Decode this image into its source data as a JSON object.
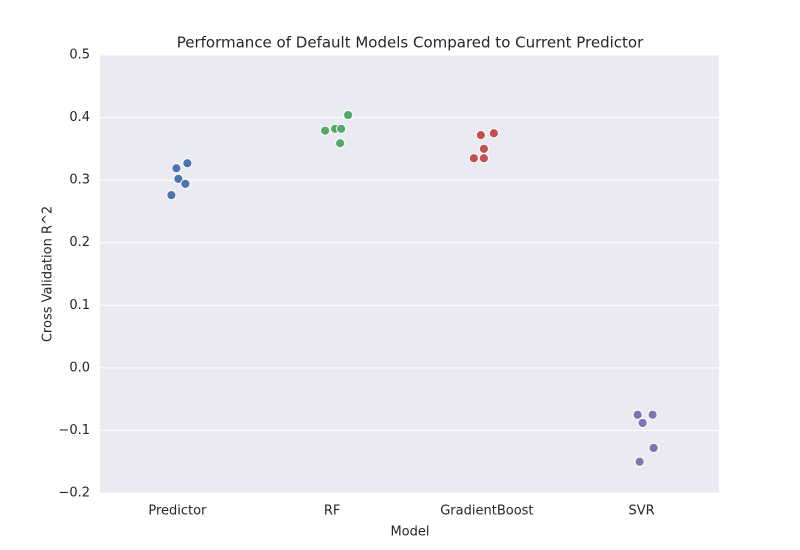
{
  "chart_data": {
    "type": "strip",
    "title": "Performance of Default Models Compared to Current Predictor",
    "x_label": "Model",
    "y_label": "Cross Validation R^2",
    "categories": [
      "Predictor",
      "RF",
      "GradientBoost",
      "SVR"
    ],
    "values": [
      [
        0.319,
        0.302,
        0.276,
        0.327,
        0.294
      ],
      [
        0.379,
        0.382,
        0.382,
        0.404,
        0.359
      ],
      [
        0.335,
        0.372,
        0.35,
        0.335,
        0.375
      ],
      [
        -0.075,
        -0.075,
        -0.088,
        -0.128,
        -0.15
      ]
    ],
    "colors": [
      "#4c72b0",
      "#55a868",
      "#c44e52",
      "#8172b2"
    ],
    "ylim": [
      -0.2,
      0.5
    ],
    "yticks": [
      {
        "value": -0.2,
        "label": "−0.2"
      },
      {
        "value": -0.1,
        "label": "−0.1"
      },
      {
        "value": 0,
        "label": "0.0"
      },
      0.1,
      0.2,
      0.3,
      0.4,
      0.5
    ],
    "grid": true
  }
}
